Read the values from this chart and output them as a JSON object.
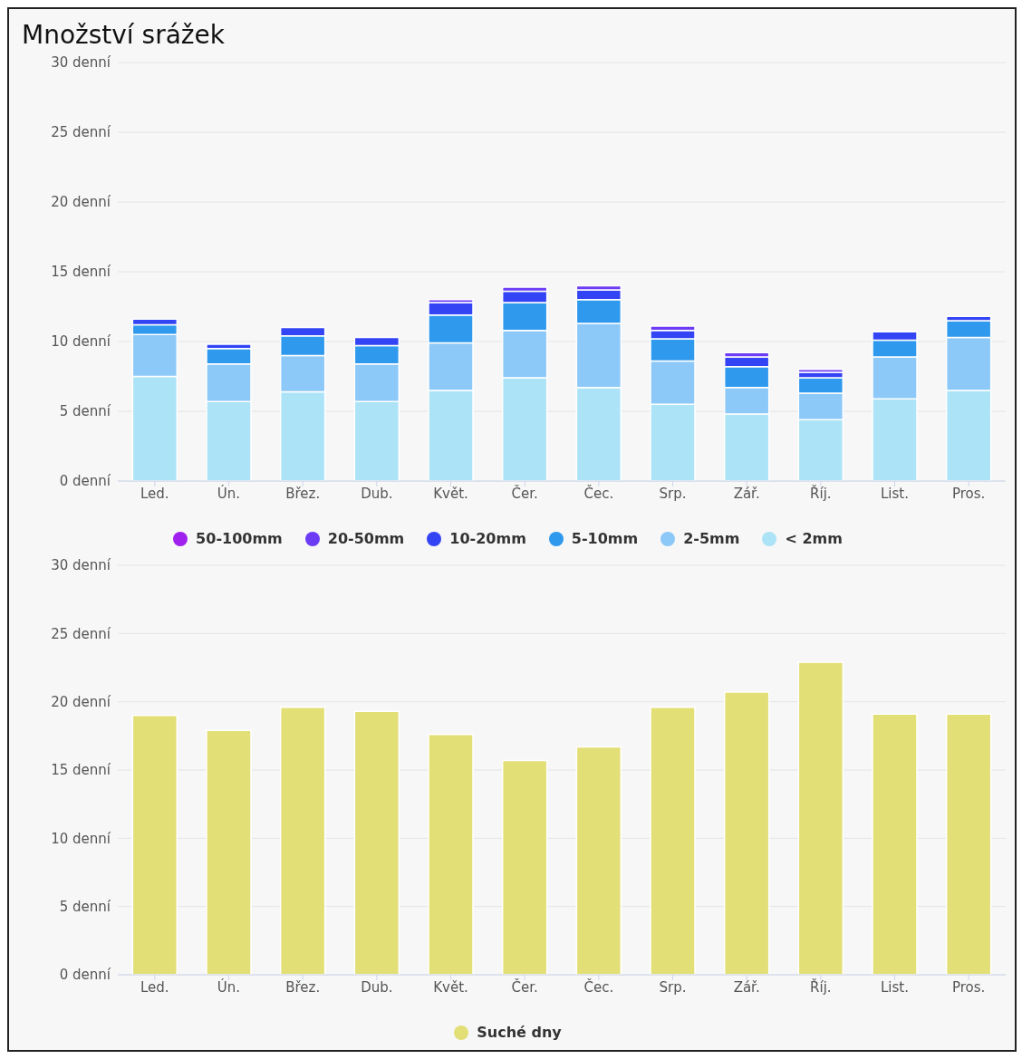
{
  "chart_data": [
    {
      "type": "bar",
      "title": "Množství srážek",
      "stacked": true,
      "categories": [
        "Led.",
        "Ún.",
        "Břez.",
        "Dub.",
        "Květ.",
        "Čer.",
        "Čec.",
        "Srp.",
        "Zář.",
        "Říj.",
        "List.",
        "Pros."
      ],
      "series": [
        {
          "name": "< 2mm",
          "color": "#ade3f6",
          "values": [
            7.5,
            5.7,
            6.4,
            5.7,
            6.5,
            7.4,
            6.7,
            5.5,
            4.8,
            4.4,
            5.9,
            6.5
          ]
        },
        {
          "name": "2-5mm",
          "color": "#8cc8f8",
          "values": [
            3.0,
            2.7,
            2.6,
            2.7,
            3.4,
            3.4,
            4.6,
            3.1,
            1.9,
            1.9,
            3.0,
            3.8
          ]
        },
        {
          "name": "5-10mm",
          "color": "#2f99ee",
          "values": [
            0.7,
            1.1,
            1.4,
            1.3,
            2.0,
            2.0,
            1.7,
            1.6,
            1.5,
            1.1,
            1.2,
            1.2
          ]
        },
        {
          "name": "10-20mm",
          "color": "#3344f5",
          "values": [
            0.4,
            0.3,
            0.6,
            0.6,
            0.9,
            0.8,
            0.7,
            0.6,
            0.7,
            0.4,
            0.6,
            0.3
          ]
        },
        {
          "name": "20-50mm",
          "color": "#6c3cf5",
          "values": [
            0,
            0,
            0,
            0,
            0.2,
            0.3,
            0.3,
            0.3,
            0.3,
            0.2,
            0,
            0
          ]
        },
        {
          "name": "50-100mm",
          "color": "#a020f0",
          "values": [
            0,
            0,
            0,
            0,
            0,
            0,
            0,
            0,
            0,
            0,
            0,
            0
          ]
        }
      ],
      "ylim": [
        0,
        30
      ],
      "yticks": [
        {
          "value": 0,
          "label": "0 denní"
        },
        {
          "value": 5,
          "label": "5 denní"
        },
        {
          "value": 10,
          "label": "10 denní"
        },
        {
          "value": 15,
          "label": "15 denní"
        },
        {
          "value": 20,
          "label": "20 denní"
        },
        {
          "value": 25,
          "label": "25 denní"
        },
        {
          "value": 30,
          "label": "30 denní"
        }
      ],
      "grid": "y",
      "legend": "bottom"
    },
    {
      "type": "bar",
      "categories": [
        "Led.",
        "Ún.",
        "Břez.",
        "Dub.",
        "Květ.",
        "Čer.",
        "Čec.",
        "Srp.",
        "Zář.",
        "Říj.",
        "List.",
        "Pros."
      ],
      "series": [
        {
          "name": "Suché dny",
          "color": "#e3df77",
          "values": [
            19.0,
            17.9,
            19.6,
            19.3,
            17.6,
            15.7,
            16.7,
            19.6,
            20.7,
            22.9,
            19.1,
            19.1
          ]
        }
      ],
      "ylim": [
        0,
        30
      ],
      "yticks": [
        {
          "value": 0,
          "label": "0 denní"
        },
        {
          "value": 5,
          "label": "5 denní"
        },
        {
          "value": 10,
          "label": "10 denní"
        },
        {
          "value": 15,
          "label": "15 denní"
        },
        {
          "value": 20,
          "label": "20 denní"
        },
        {
          "value": 25,
          "label": "25 denní"
        },
        {
          "value": 30,
          "label": "30 denní"
        }
      ],
      "grid": "y",
      "legend": "bottom"
    }
  ]
}
